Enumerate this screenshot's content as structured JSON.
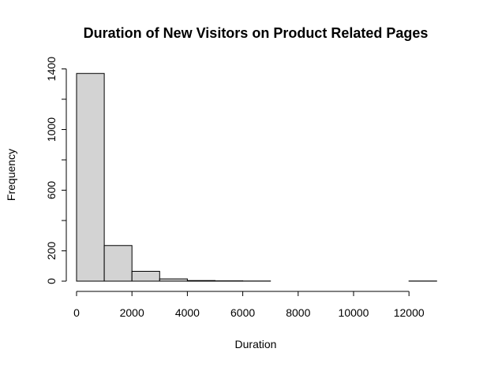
{
  "chart_data": {
    "type": "bar",
    "title": "Duration of New Visitors on Product Related Pages",
    "xlabel": "Duration",
    "ylabel": "Frequency",
    "bins": [
      {
        "from": 0,
        "to": 1000,
        "count": 1370
      },
      {
        "from": 1000,
        "to": 2000,
        "count": 235
      },
      {
        "from": 2000,
        "to": 3000,
        "count": 65
      },
      {
        "from": 3000,
        "to": 4000,
        "count": 15
      },
      {
        "from": 4000,
        "to": 5000,
        "count": 4
      },
      {
        "from": 5000,
        "to": 6000,
        "count": 2
      },
      {
        "from": 6000,
        "to": 7000,
        "count": 1
      },
      {
        "from": 7000,
        "to": 8000,
        "count": 0
      },
      {
        "from": 8000,
        "to": 9000,
        "count": 0
      },
      {
        "from": 9000,
        "to": 10000,
        "count": 0
      },
      {
        "from": 10000,
        "to": 11000,
        "count": 0
      },
      {
        "from": 11000,
        "to": 12000,
        "count": 0
      },
      {
        "from": 12000,
        "to": 13000,
        "count": 1
      }
    ],
    "xlim": [
      0,
      13000
    ],
    "ylim": [
      0,
      1400
    ],
    "x_ticks": [
      0,
      2000,
      4000,
      6000,
      8000,
      10000,
      12000
    ],
    "y_ticks": [
      0,
      200,
      400,
      600,
      800,
      1000,
      1200,
      1400
    ],
    "y_tick_labels": [
      "0",
      "200",
      "",
      "600",
      "",
      "1000",
      "",
      "1400"
    ],
    "bar_fill": "#d3d3d3",
    "bar_stroke": "#000000",
    "grid": false
  }
}
